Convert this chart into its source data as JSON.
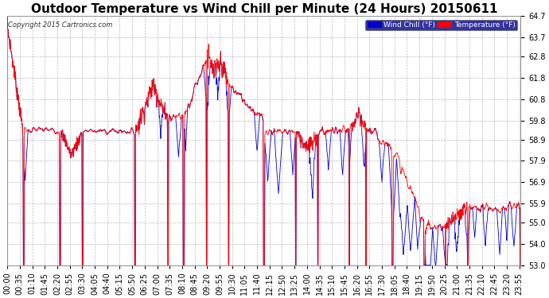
{
  "title": "Outdoor Temperature vs Wind Chill per Minute (24 Hours) 20150611",
  "copyright_text": "Copyright 2015 Cartronics.com",
  "legend_wind_chill": "Wind Chill (°F)",
  "legend_temperature": "Temperature (°F)",
  "ylim": [
    53.0,
    64.7
  ],
  "yticks": [
    53.0,
    54.0,
    55.0,
    55.9,
    56.9,
    57.9,
    58.9,
    59.8,
    60.8,
    61.8,
    62.8,
    63.7,
    64.7
  ],
  "temp_color": "#ff0000",
  "wind_color": "#0000cc",
  "legend_temp_bg": "#ff0000",
  "legend_wind_bg": "#0000cc",
  "background_color": "#ffffff",
  "grid_color": "#bbbbbb",
  "title_fontsize": 11,
  "tick_fontsize": 7,
  "n_minutes": 1440,
  "xtick_interval": 35,
  "x_labels": [
    "00:00",
    "00:35",
    "01:10",
    "01:45",
    "02:20",
    "02:55",
    "03:30",
    "04:05",
    "04:40",
    "05:15",
    "05:50",
    "06:25",
    "07:00",
    "07:35",
    "08:10",
    "08:45",
    "09:20",
    "09:55",
    "10:30",
    "11:05",
    "11:40",
    "12:15",
    "12:50",
    "13:25",
    "14:00",
    "14:35",
    "15:10",
    "15:45",
    "16:20",
    "16:55",
    "17:30",
    "18:05",
    "18:40",
    "19:15",
    "19:50",
    "20:25",
    "21:00",
    "21:35",
    "22:10",
    "22:45",
    "23:20",
    "23:55"
  ]
}
